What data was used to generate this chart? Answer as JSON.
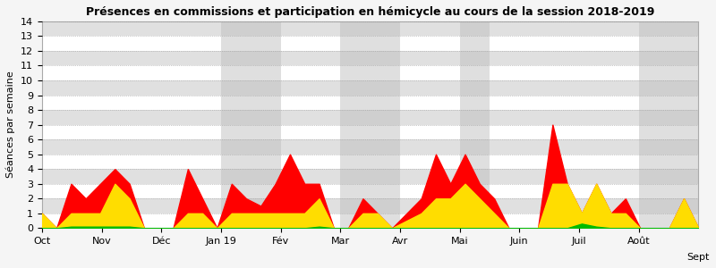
{
  "title": "Présences en commissions et participation en hémicycle au cours de la session 2018-2019",
  "ylabel": "Séances par semaine",
  "xlim_start": 0,
  "xlim_end": 1,
  "ylim": [
    0,
    14
  ],
  "yticks": [
    0,
    1,
    2,
    3,
    4,
    5,
    6,
    7,
    8,
    9,
    10,
    11,
    12,
    13,
    14
  ],
  "bg_color": "#f0f0f0",
  "stripe_colors": [
    "#ffffff",
    "#e0e0e0"
  ],
  "gray_band_color": "#c0c0c0",
  "gray_band_alpha": 0.5,
  "month_labels": [
    "Oct",
    "Nov",
    "Déc",
    "Jan 19",
    "Fév",
    "Mar",
    "Avr",
    "Mai",
    "Juin",
    "Juil",
    "Août",
    "Sept"
  ],
  "month_positions": [
    0.0,
    0.0909,
    0.1818,
    0.2727,
    0.3636,
    0.4545,
    0.5455,
    0.6364,
    0.7273,
    0.8182,
    0.9091,
    1.0
  ],
  "gray_bands": [
    [
      0.2727,
      0.3636
    ],
    [
      0.4545,
      0.5455
    ],
    [
      0.6364,
      0.6818
    ],
    [
      0.9091,
      1.0
    ]
  ],
  "color_red": "#ff0000",
  "color_yellow": "#ffdd00",
  "color_green": "#00bb00",
  "red_series": [
    1.0,
    0.0,
    3.0,
    2.0,
    3.0,
    4.0,
    3.0,
    0.0,
    0.0,
    0.0,
    4.0,
    2.0,
    0.0,
    3.0,
    2.0,
    1.5,
    3.0,
    5.0,
    3.0,
    3.0,
    0.0,
    0.0,
    2.0,
    1.0,
    0.0,
    1.0,
    2.0,
    5.0,
    3.0,
    5.0,
    3.0,
    2.0,
    0.0,
    0.0,
    0.0,
    7.0,
    3.0,
    1.0,
    3.0,
    1.0,
    2.0,
    0.0,
    0.0,
    0.0,
    2.0,
    0.0
  ],
  "yellow_series": [
    1.0,
    0.0,
    1.0,
    1.0,
    1.0,
    3.0,
    2.0,
    0.0,
    0.0,
    0.0,
    1.0,
    1.0,
    0.0,
    1.0,
    1.0,
    1.0,
    1.0,
    1.0,
    1.0,
    2.0,
    0.0,
    0.0,
    1.0,
    1.0,
    0.0,
    0.5,
    1.0,
    2.0,
    2.0,
    3.0,
    2.0,
    1.0,
    0.0,
    0.0,
    0.0,
    3.0,
    3.0,
    1.0,
    3.0,
    1.0,
    1.0,
    0.0,
    0.0,
    0.0,
    2.0,
    0.0
  ],
  "green_series": [
    0.0,
    0.0,
    0.1,
    0.1,
    0.1,
    0.1,
    0.1,
    0.0,
    0.0,
    0.0,
    0.0,
    0.0,
    0.0,
    0.0,
    0.0,
    0.0,
    0.0,
    0.0,
    0.0,
    0.1,
    0.0,
    0.0,
    0.0,
    0.0,
    0.0,
    0.0,
    0.0,
    0.0,
    0.0,
    0.0,
    0.0,
    0.0,
    0.0,
    0.0,
    0.0,
    0.0,
    0.0,
    0.3,
    0.1,
    0.0,
    0.0,
    0.0,
    0.0,
    0.0,
    0.0,
    0.0
  ]
}
